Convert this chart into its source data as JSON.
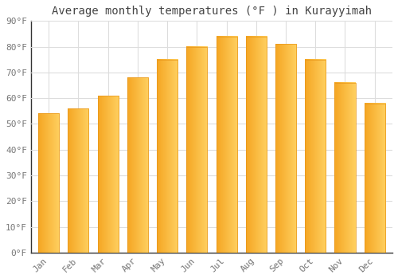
{
  "title": "Average monthly temperatures (°F ) in Kurayyimah",
  "months": [
    "Jan",
    "Feb",
    "Mar",
    "Apr",
    "May",
    "Jun",
    "Jul",
    "Aug",
    "Sep",
    "Oct",
    "Nov",
    "Dec"
  ],
  "values": [
    54,
    56,
    61,
    68,
    75,
    80,
    84,
    84,
    81,
    75,
    66,
    58
  ],
  "bar_color_left": "#F5A623",
  "bar_color_right": "#FFD060",
  "ylim": [
    0,
    90
  ],
  "yticks": [
    0,
    10,
    20,
    30,
    40,
    50,
    60,
    70,
    80,
    90
  ],
  "ytick_labels": [
    "0°F",
    "10°F",
    "20°F",
    "30°F",
    "40°F",
    "50°F",
    "60°F",
    "70°F",
    "80°F",
    "90°F"
  ],
  "background_color": "#FFFFFF",
  "grid_color": "#DDDDDD",
  "title_fontsize": 10,
  "tick_fontsize": 8,
  "tick_color": "#777777",
  "title_color": "#444444"
}
